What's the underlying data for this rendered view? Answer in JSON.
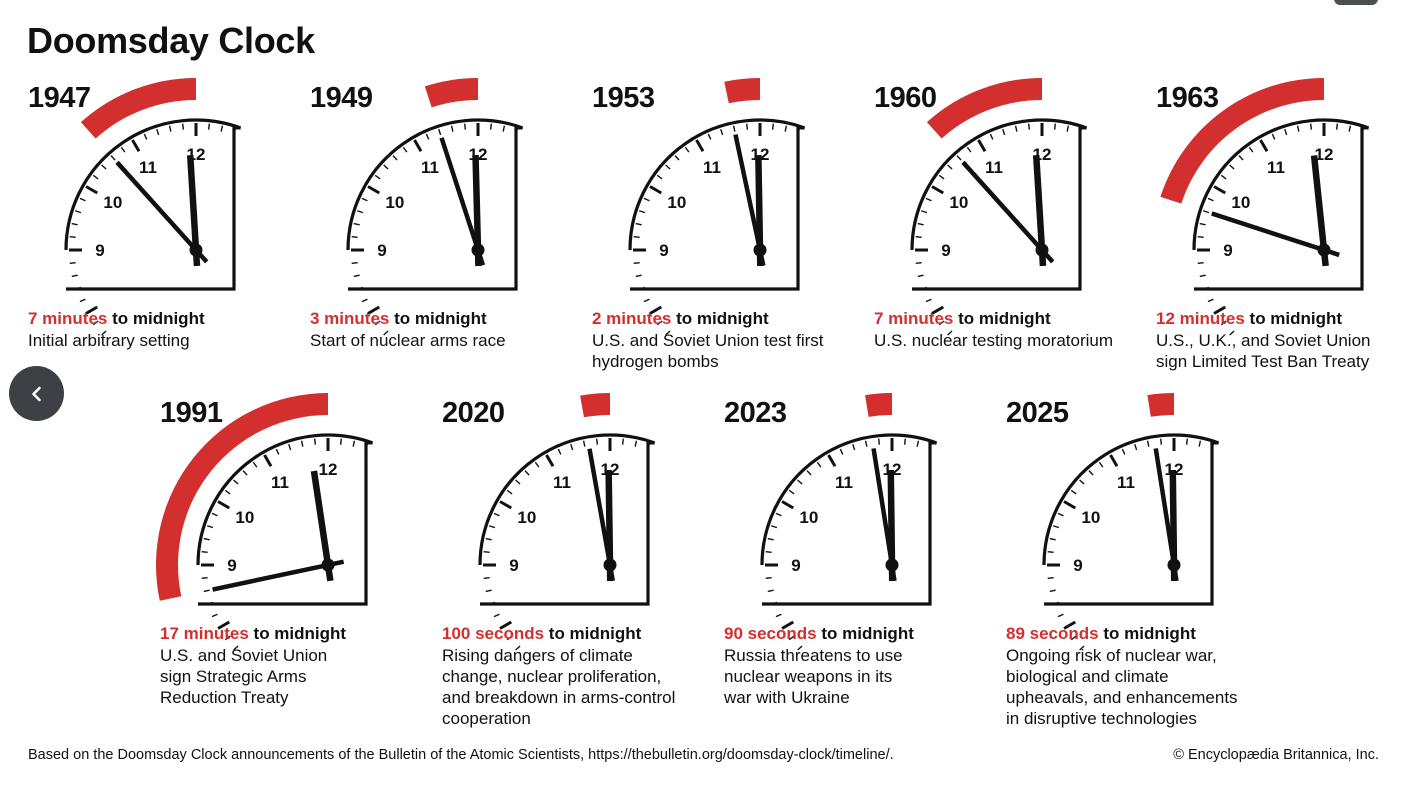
{
  "title": "Doomsday Clock",
  "suffix": "to midnight",
  "clocks": [
    {
      "year": "1947",
      "amount": "7 minutes",
      "desc": "Initial arbitrary setting",
      "seconds_to_midnight": 420
    },
    {
      "year": "1949",
      "amount": "3 minutes",
      "desc": "Start of nuclear arms race",
      "seconds_to_midnight": 180
    },
    {
      "year": "1953",
      "amount": "2 minutes",
      "desc": "U.S. and Soviet Union test first hydrogen bombs",
      "seconds_to_midnight": 120
    },
    {
      "year": "1960",
      "amount": "7 minutes",
      "desc": "U.S. nuclear testing moratorium",
      "seconds_to_midnight": 420
    },
    {
      "year": "1963",
      "amount": "12 minutes",
      "desc": "U.S., U.K., and Soviet Union sign Limited Test Ban Treaty",
      "seconds_to_midnight": 720
    },
    {
      "year": "1991",
      "amount": "17 minutes",
      "desc": "U.S. and Soviet Union sign Strategic Arms Reduction Treaty",
      "seconds_to_midnight": 1020
    },
    {
      "year": "2020",
      "amount": "100 seconds",
      "desc": "Rising dangers of climate change, nuclear proliferation, and breakdown in arms-control cooperation",
      "seconds_to_midnight": 100
    },
    {
      "year": "2023",
      "amount": "90 seconds",
      "desc": "Russia threatens to use nuclear weapons in its war with Ukraine",
      "seconds_to_midnight": 90
    },
    {
      "year": "2025",
      "amount": "89 seconds",
      "desc": "Ongoing risk of nuclear war, biological and climate upheavals, and enhancements in disruptive technologies",
      "seconds_to_midnight": 89
    }
  ],
  "dial_numbers": [
    "9",
    "10",
    "11",
    "12"
  ],
  "footnote": "Based on the Doomsday Clock announcements of the Bulletin of the Atomic Scientists, https://thebulletin.org/doomsday-clock/timeline/.",
  "copyright": "© Encyclopædia Britannica, Inc.",
  "colors": {
    "accent": "#d32f2f",
    "ink": "#111111",
    "back_button": "#3d4146"
  },
  "icons": {
    "back": "chevron-left-icon"
  }
}
